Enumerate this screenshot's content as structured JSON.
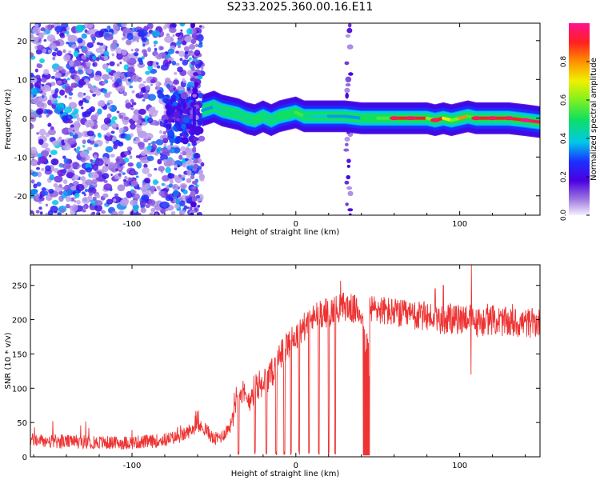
{
  "title": "S233.2025.360.00.16.E11",
  "chart_data": [
    {
      "type": "heatmap",
      "name": "spectrogram",
      "xlabel": "Height of straight line (km)",
      "ylabel": "Frequency (Hz)",
      "xlim": [
        -162,
        149
      ],
      "ylim": [
        -25,
        24.5
      ],
      "xticks": [
        -100,
        0,
        100
      ],
      "xtick_labels": [
        "-100",
        "0",
        "100"
      ],
      "yticks": [
        -20,
        -10,
        0,
        10,
        20
      ],
      "ytick_labels": [
        "-20",
        "-10",
        "0",
        "10",
        "20"
      ],
      "colorbar": {
        "label": "Normalized spectral amplitude",
        "range": [
          0,
          1
        ],
        "ticks": [
          0.0,
          0.2,
          0.4,
          0.6,
          0.8
        ],
        "tick_labels": [
          "0.0",
          "0.2",
          "0.4",
          "0.6",
          "0.8"
        ]
      },
      "ridge": {
        "x": [
          -57,
          -50,
          -45,
          -40,
          -35,
          -30,
          -25,
          -20,
          -15,
          -10,
          -5,
          0,
          5,
          10,
          20,
          30,
          40,
          50,
          60,
          70,
          80,
          85,
          90,
          95,
          100,
          105,
          110,
          120,
          130,
          140,
          149
        ],
        "freq": [
          2,
          3,
          2,
          1.5,
          1,
          0,
          -0.5,
          0.5,
          -0.5,
          0.5,
          1,
          1.5,
          0.5,
          0.5,
          0.5,
          0.5,
          0,
          0,
          0,
          0,
          0,
          -0.5,
          0,
          -0.5,
          0,
          0.5,
          0,
          0,
          0,
          -0.5,
          -1
        ],
        "amplitude": [
          0.35,
          0.4,
          0.45,
          0.45,
          0.45,
          0.45,
          0.5,
          0.45,
          0.45,
          0.5,
          0.5,
          0.55,
          0.45,
          0.4,
          0.35,
          0.35,
          0.5,
          0.55,
          0.9,
          0.9,
          0.6,
          0.9,
          0.7,
          0.6,
          0.8,
          0.55,
          0.9,
          0.9,
          0.9,
          0.95,
          0.6
        ]
      },
      "noise_region": {
        "x_range": [
          -162,
          -65
        ],
        "amplitude": [
          0.05,
          0.4
        ]
      },
      "vertical_stripes_x": [
        -62,
        32
      ]
    },
    {
      "type": "line",
      "name": "snr",
      "xlabel": "Height of straight line (km)",
      "ylabel": "SNR (10 * v/v)",
      "xlim": [
        -162,
        149
      ],
      "ylim": [
        0,
        280
      ],
      "xticks": [
        -100,
        0,
        100
      ],
      "xtick_labels": [
        "-100",
        "0",
        "100"
      ],
      "yticks": [
        0,
        50,
        100,
        150,
        200,
        250
      ],
      "ytick_labels": [
        "0",
        "50",
        "100",
        "150",
        "200",
        "250"
      ],
      "color": "#ee3333",
      "x": [
        -162,
        -150,
        -130,
        -110,
        -90,
        -80,
        -70,
        -60,
        -55,
        -50,
        -45,
        -40,
        -35,
        -30,
        -25,
        -20,
        -15,
        -10,
        -5,
        0,
        5,
        10,
        15,
        20,
        25,
        30,
        35,
        40,
        45,
        50,
        60,
        70,
        80,
        90,
        100,
        105,
        110,
        120,
        130,
        140,
        149
      ],
      "y": [
        25,
        22,
        22,
        20,
        22,
        25,
        30,
        45,
        40,
        25,
        30,
        45,
        105,
        80,
        100,
        110,
        120,
        145,
        165,
        175,
        190,
        200,
        210,
        210,
        215,
        220,
        215,
        210,
        215,
        215,
        210,
        205,
        205,
        200,
        200,
        205,
        195,
        200,
        195,
        195,
        195
      ],
      "dropouts_x": [
        -35,
        -25,
        -18,
        -12,
        -7,
        -3,
        2,
        8,
        14,
        20,
        24
      ],
      "gap_x": [
        41,
        45
      ],
      "spikes": [
        {
          "x": 107,
          "y": 280
        },
        {
          "x": 90,
          "y": 250
        },
        {
          "x": 85,
          "y": 245
        }
      ]
    }
  ]
}
